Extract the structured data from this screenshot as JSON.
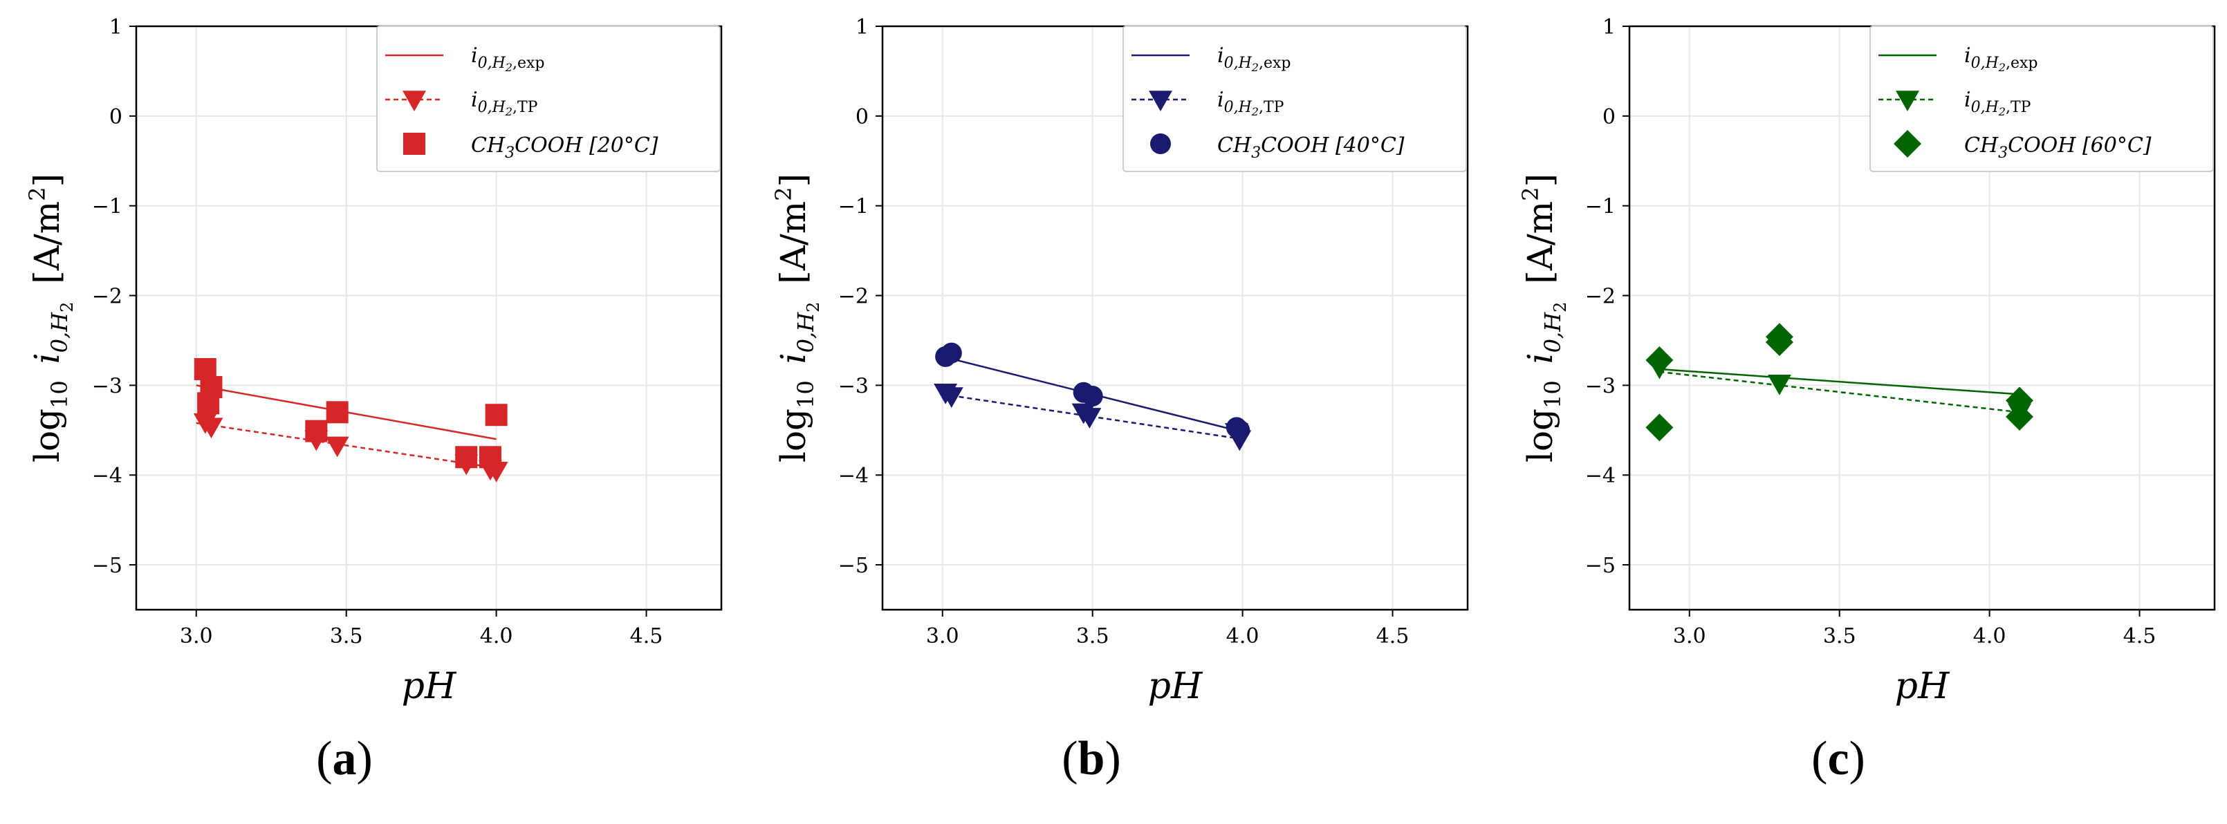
{
  "figure": {
    "ylabel_prefix": "log",
    "ylabel_base": "10",
    "ylabel_var": "i",
    "ylabel_sub": "0,H",
    "ylabel_subsub": "2",
    "ylabel_units": "[A/m",
    "ylabel_units_sup": "2",
    "ylabel_units_close": "]"
  },
  "chart_data": [
    {
      "type": "scatter",
      "panel_label": "a",
      "xlabel": "pH",
      "xlim": [
        2.8,
        4.75
      ],
      "ylim": [
        -5.5,
        1
      ],
      "xticks": [
        "3.0",
        "3.5",
        "4.0",
        "4.5"
      ],
      "xtick_values": [
        3.0,
        3.5,
        4.0,
        4.5
      ],
      "yticks": [
        "1",
        "0",
        "−1",
        "−2",
        "−3",
        "−4",
        "−5"
      ],
      "ytick_values": [
        1,
        0,
        -1,
        -2,
        -3,
        -4,
        -5
      ],
      "grid": true,
      "legend_position": "top-right",
      "color": "#d62728",
      "marker": "square",
      "legend": {
        "exp_main": "i",
        "exp_sub": "0,H",
        "exp_subsub": "2",
        "exp_tail": ",exp",
        "tp_main": "i",
        "tp_sub": "0,H",
        "tp_subsub": "2",
        "tp_tail": ",TP",
        "data_label": "CH",
        "data_sub": "3",
        "data_tail": "COOH",
        "data_temp": "[20°C]"
      },
      "series": [
        {
          "name": "CH3COOH [20°C]",
          "x": [
            3.03,
            3.04,
            3.05,
            3.4,
            3.47,
            3.9,
            3.98,
            4.0
          ],
          "y": [
            -2.82,
            -3.2,
            -3.02,
            -3.51,
            -3.3,
            -3.8,
            -3.8,
            -3.33
          ]
        },
        {
          "name": "i0,H2,TP",
          "x": [
            3.03,
            3.05,
            3.4,
            3.47,
            3.9,
            3.98,
            4.0
          ],
          "y": [
            -3.41,
            -3.46,
            -3.6,
            -3.67,
            -3.87,
            -3.93,
            -3.95
          ]
        },
        {
          "name": "i0,H2,exp",
          "x": [
            3.0,
            4.0
          ],
          "y": [
            -3.0,
            -3.6
          ]
        },
        {
          "name": "i0,H2,TP fit",
          "x": [
            3.0,
            4.0
          ],
          "y": [
            -3.42,
            -3.92
          ]
        }
      ]
    },
    {
      "type": "scatter",
      "panel_label": "b",
      "xlabel": "pH",
      "xlim": [
        2.8,
        4.75
      ],
      "ylim": [
        -5.5,
        1
      ],
      "xticks": [
        "3.0",
        "3.5",
        "4.0",
        "4.5"
      ],
      "xtick_values": [
        3.0,
        3.5,
        4.0,
        4.5
      ],
      "yticks": [
        "1",
        "0",
        "−1",
        "−2",
        "−3",
        "−4",
        "−5"
      ],
      "ytick_values": [
        1,
        0,
        -1,
        -2,
        -3,
        -4,
        -5
      ],
      "grid": true,
      "legend_position": "top-right",
      "color": "#1a1a6e",
      "marker": "circle",
      "legend": {
        "exp_main": "i",
        "exp_sub": "0,H",
        "exp_subsub": "2",
        "exp_tail": ",exp",
        "tp_main": "i",
        "tp_sub": "0,H",
        "tp_subsub": "2",
        "tp_tail": ",TP",
        "data_label": "CH",
        "data_sub": "3",
        "data_tail": "COOH",
        "data_temp": "[40°C]"
      },
      "series": [
        {
          "name": "CH3COOH [40°C]",
          "x": [
            3.01,
            3.03,
            3.47,
            3.5,
            3.98,
            3.99
          ],
          "y": [
            -2.68,
            -2.64,
            -3.08,
            -3.12,
            -3.47,
            -3.5
          ]
        },
        {
          "name": "i0,H2,TP",
          "x": [
            3.01,
            3.03,
            3.47,
            3.49,
            3.98,
            3.99
          ],
          "y": [
            -3.08,
            -3.12,
            -3.3,
            -3.35,
            -3.52,
            -3.6
          ]
        },
        {
          "name": "i0,H2,exp",
          "x": [
            3.0,
            4.0
          ],
          "y": [
            -2.68,
            -3.52
          ]
        },
        {
          "name": "i0,H2,TP fit",
          "x": [
            3.0,
            4.0
          ],
          "y": [
            -3.1,
            -3.6
          ]
        }
      ]
    },
    {
      "type": "scatter",
      "panel_label": "c",
      "xlabel": "pH",
      "xlim": [
        2.8,
        4.75
      ],
      "ylim": [
        -5.5,
        1
      ],
      "xticks": [
        "3.0",
        "3.5",
        "4.0",
        "4.5"
      ],
      "xtick_values": [
        3.0,
        3.5,
        4.0,
        4.5
      ],
      "yticks": [
        "1",
        "0",
        "−1",
        "−2",
        "−3",
        "−4",
        "−5"
      ],
      "ytick_values": [
        1,
        0,
        -1,
        -2,
        -3,
        -4,
        -5
      ],
      "grid": true,
      "legend_position": "top-right",
      "color": "#006400",
      "marker": "diamond",
      "legend": {
        "exp_main": "i",
        "exp_sub": "0,H",
        "exp_subsub": "2",
        "exp_tail": ",exp",
        "tp_main": "i",
        "tp_sub": "0,H",
        "tp_subsub": "2",
        "tp_tail": ",TP",
        "data_label": "CH",
        "data_sub": "3",
        "data_tail": "COOH",
        "data_temp": "[60°C]"
      },
      "series": [
        {
          "name": "CH3COOH [60°C]",
          "x": [
            2.9,
            2.9,
            3.3,
            3.3,
            4.1,
            4.1
          ],
          "y": [
            -2.72,
            -3.47,
            -2.46,
            -2.52,
            -3.17,
            -3.35
          ]
        },
        {
          "name": "i0,H2,TP",
          "x": [
            2.9,
            3.3,
            4.1
          ],
          "y": [
            -2.8,
            -2.98,
            -3.3
          ]
        },
        {
          "name": "i0,H2,exp",
          "x": [
            2.9,
            4.1
          ],
          "y": [
            -2.82,
            -3.1
          ]
        },
        {
          "name": "i0,H2,TP fit",
          "x": [
            2.9,
            4.1
          ],
          "y": [
            -2.85,
            -3.3
          ]
        }
      ]
    }
  ]
}
